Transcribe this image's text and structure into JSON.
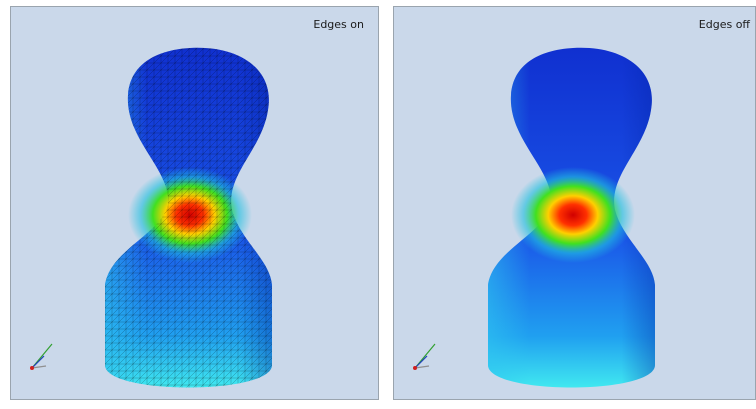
{
  "panels": [
    {
      "label": "Edges on"
    },
    {
      "label": "Edges off"
    }
  ]
}
